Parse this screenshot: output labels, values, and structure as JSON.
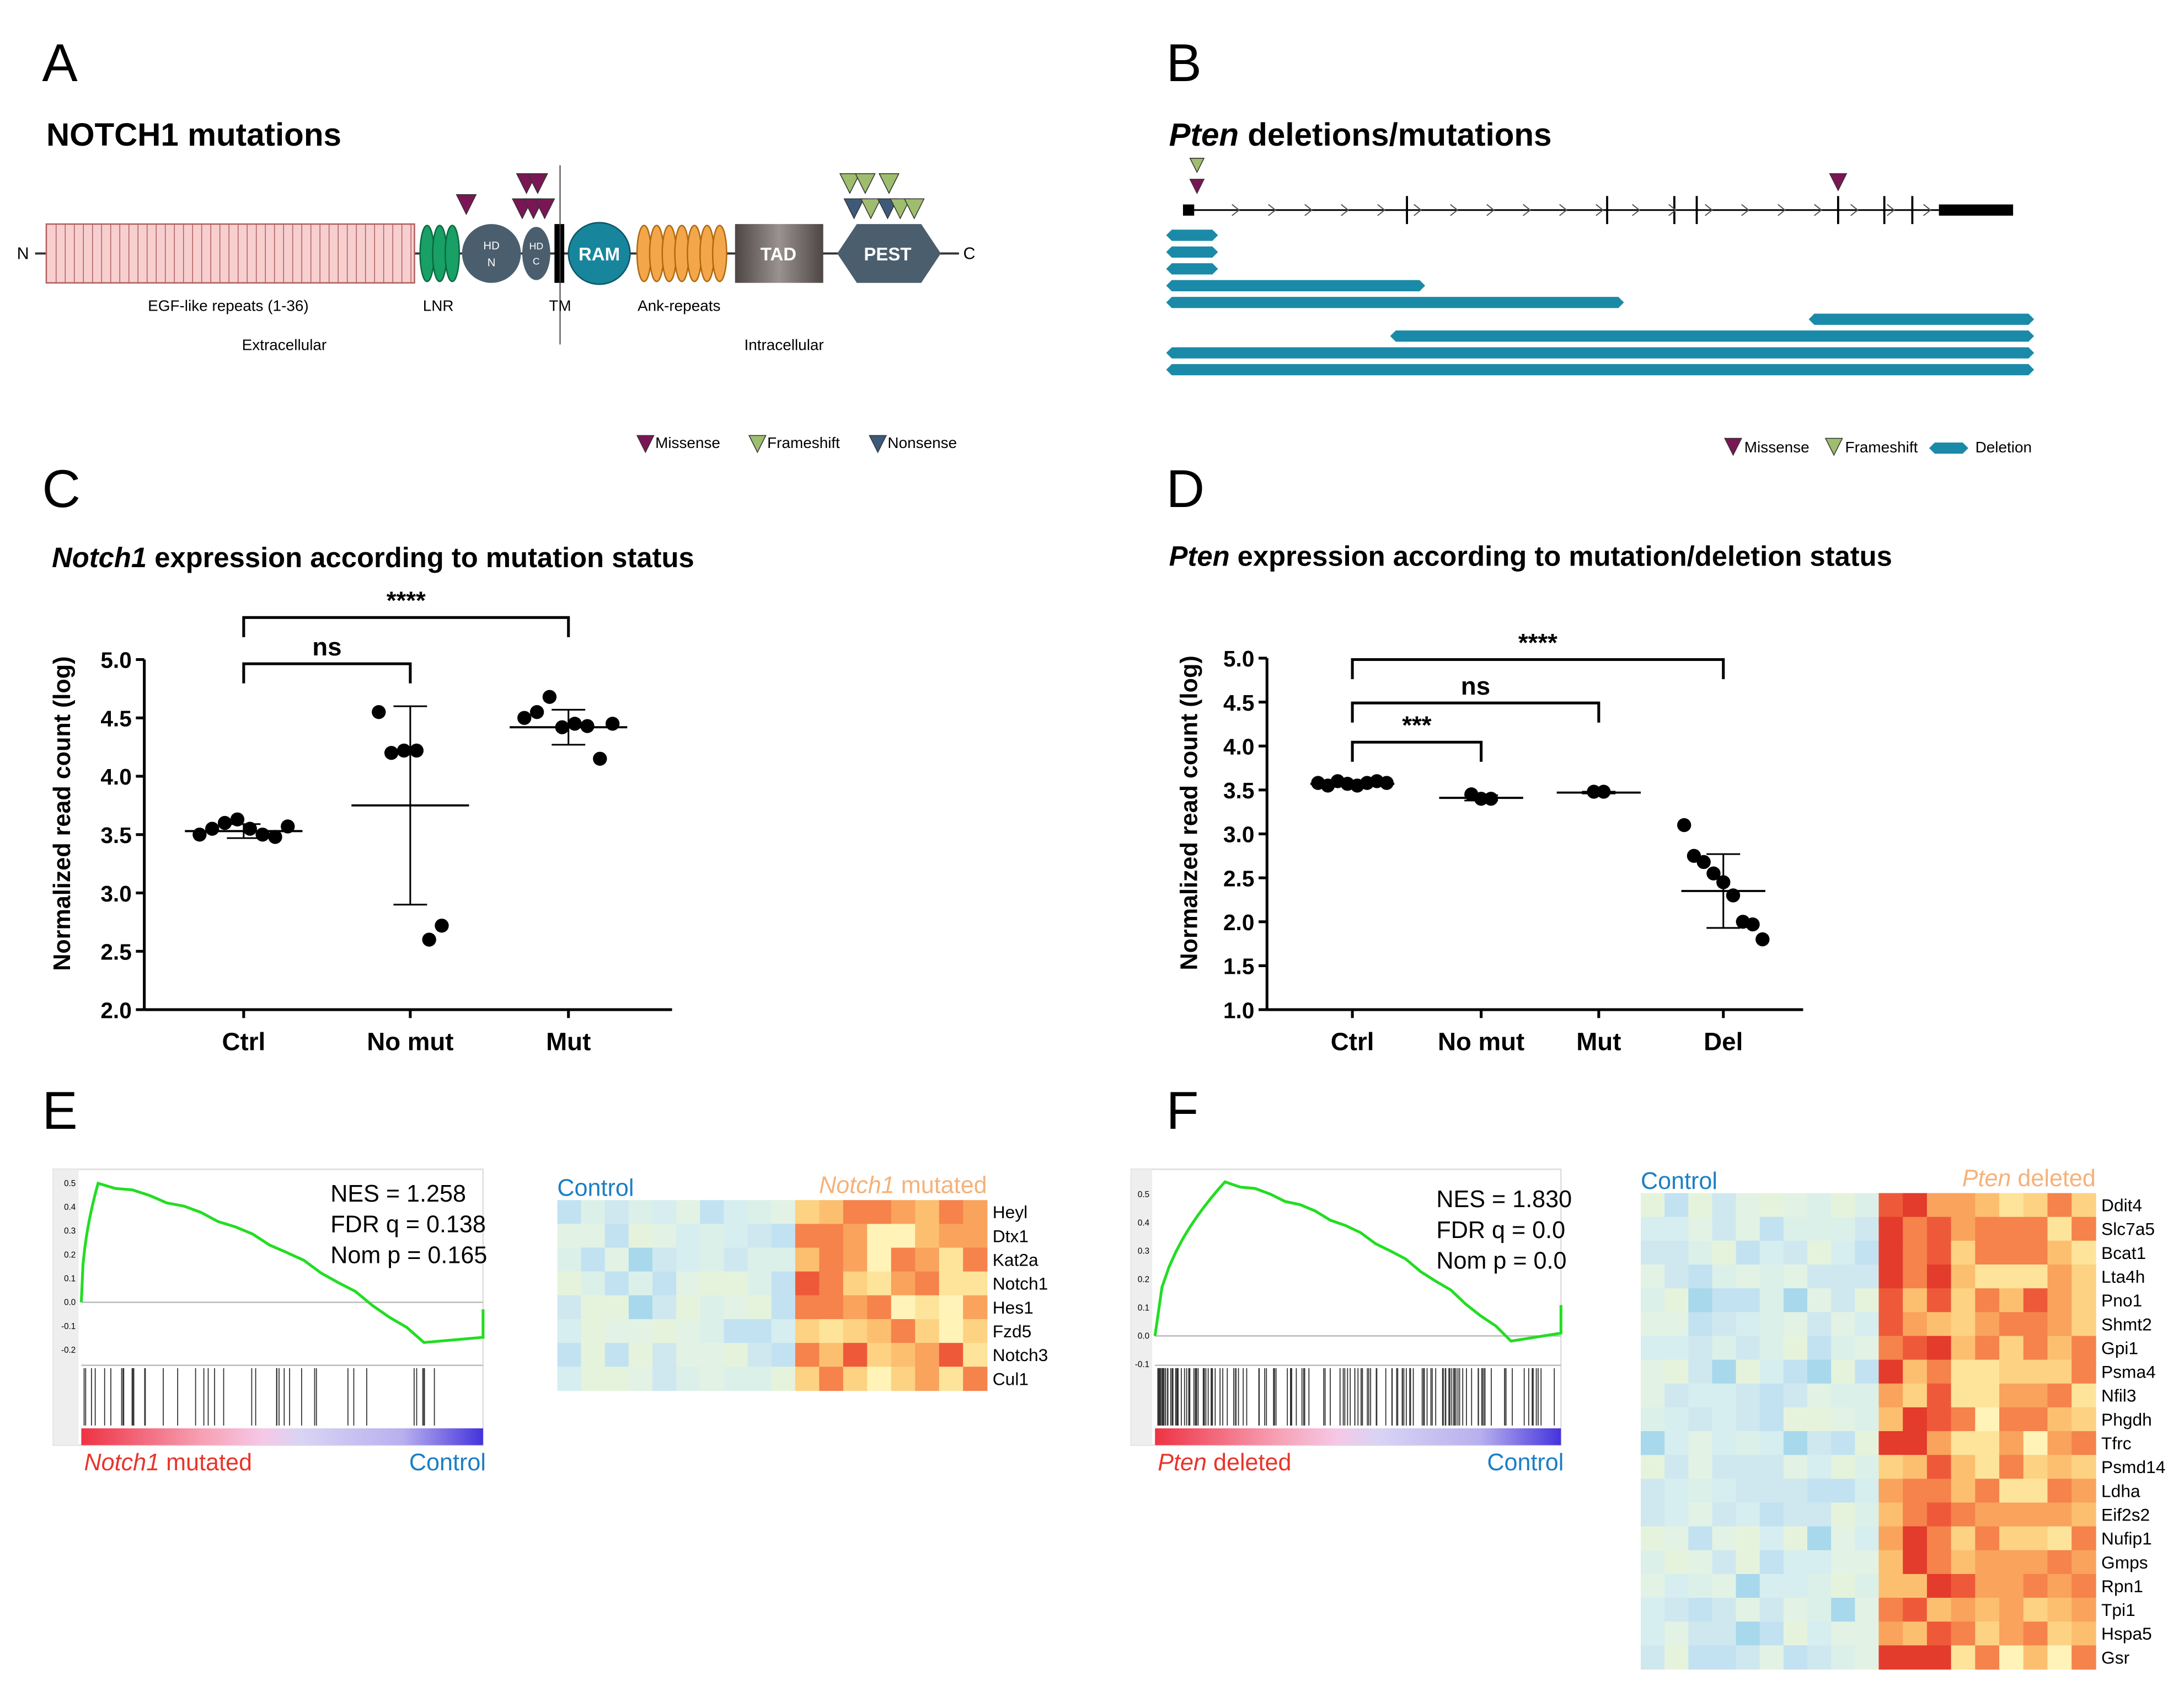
{
  "panel_labels": [
    "A",
    "B",
    "C",
    "D",
    "E",
    "F"
  ],
  "panel_a": {
    "title": "NOTCH1 mutations",
    "n_term": "N",
    "c_term": "C",
    "domains": [
      "EGF-like repeats (1-36)",
      "LNR",
      "TM",
      "Ank-repeats"
    ],
    "hd_n": [
      "HD",
      "N"
    ],
    "hd_c": [
      "HD",
      "C"
    ],
    "ram": "RAM",
    "tad": "TAD",
    "pest": "PEST",
    "regions": [
      "Extracellular",
      "Intracellular"
    ],
    "legend": [
      "Missense",
      "Frameshift",
      "Nonsense"
    ]
  },
  "panel_b": {
    "title": [
      "Pten",
      " deletions/mutations"
    ],
    "legend": [
      "Missense",
      "Frameshift",
      "Deletion"
    ]
  },
  "chart_data": [
    {
      "type": "dot",
      "title": [
        "Notch1",
        " expression according to mutation status"
      ],
      "ylabel": "Normalized read count (log)",
      "categories": [
        "Ctrl",
        "No mut",
        "Mut"
      ],
      "values": [
        [
          3.5,
          3.55,
          3.6,
          3.63,
          3.55,
          3.5,
          3.48,
          3.57
        ],
        [
          4.55,
          4.2,
          4.22,
          4.22,
          2.6,
          2.72
        ],
        [
          4.5,
          4.55,
          4.68,
          4.42,
          4.45,
          4.43,
          4.15,
          4.45
        ]
      ],
      "means": [
        3.53,
        3.75,
        4.42
      ],
      "sd": [
        0.06,
        0.85,
        0.15
      ],
      "ylim": [
        2.0,
        5.0
      ],
      "yticks": [
        {
          "value": 2.0,
          "label": "2.0"
        },
        {
          "value": 2.5,
          "label": "2.5"
        },
        {
          "value": 3.0,
          "label": "3.0"
        },
        {
          "value": 3.5,
          "label": "3.5"
        },
        {
          "value": 4.0,
          "label": "4.0"
        },
        {
          "value": 4.5,
          "label": "4.5"
        },
        {
          "value": 5.0,
          "label": "5.0"
        }
      ],
      "comparisons": [
        {
          "between": [
            0,
            1
          ],
          "label": "ns"
        },
        {
          "between": [
            0,
            2
          ],
          "label": "****"
        }
      ],
      "color": "#000000"
    },
    {
      "type": "dot",
      "title": [
        "Pten",
        " expression according to mutation/deletion status"
      ],
      "ylabel": "Normalized read count (log)",
      "categories": [
        "Ctrl",
        "No mut",
        "Mut",
        "Del"
      ],
      "values": [
        [
          3.58,
          3.55,
          3.6,
          3.57,
          3.55,
          3.58,
          3.6,
          3.58
        ],
        [
          3.45,
          3.4,
          3.4
        ],
        [
          3.48,
          3.48
        ],
        [
          3.1,
          2.75,
          2.68,
          2.55,
          2.45,
          2.3,
          2.0,
          1.97,
          1.8
        ]
      ],
      "means": [
        3.57,
        3.41,
        3.47,
        2.35
      ],
      "sd": [
        0.03,
        0.03,
        0.01,
        0.42
      ],
      "ylim": [
        1.0,
        5.0
      ],
      "yticks": [
        {
          "value": 1.0,
          "label": "1.0"
        },
        {
          "value": 1.5,
          "label": "1.5"
        },
        {
          "value": 2.0,
          "label": "2.0"
        },
        {
          "value": 2.5,
          "label": "2.5"
        },
        {
          "value": 3.0,
          "label": "3.0"
        },
        {
          "value": 3.5,
          "label": "3.5"
        },
        {
          "value": 4.0,
          "label": "4.0"
        },
        {
          "value": 4.5,
          "label": "4.5"
        },
        {
          "value": 5.0,
          "label": "5.0"
        }
      ],
      "comparisons": [
        {
          "between": [
            0,
            1
          ],
          "label": "***"
        },
        {
          "between": [
            0,
            2
          ],
          "label": "ns"
        },
        {
          "between": [
            0,
            3
          ],
          "label": "****"
        }
      ],
      "color": "#000000"
    }
  ],
  "panel_e": {
    "stats": [
      "NES = 1.258",
      "FDR q = 0.138",
      "Nom p = 0.165"
    ],
    "yticks": [
      "0.5",
      "0.4",
      "0.3",
      "0.2",
      "0.1",
      "0.0",
      "-0.1",
      "-0.2"
    ],
    "left_label": [
      "Notch1",
      " mutated"
    ],
    "right_label": "Control",
    "heatmap_left": "Control",
    "heatmap_right": [
      "Notch1",
      " mutated"
    ],
    "genes": [
      "Heyl",
      "Dtx1",
      "Kat2a",
      "Notch1",
      "Hes1",
      "Fzd5",
      "Notch3",
      "Cul1"
    ]
  },
  "panel_f": {
    "stats": [
      "NES = 1.830",
      "FDR q = 0.0",
      "Nom p = 0.0"
    ],
    "yticks": [
      "0.5",
      "0.4",
      "0.3",
      "0.2",
      "0.1",
      "0.0",
      "-0.1"
    ],
    "left_label": [
      "Pten",
      " deleted"
    ],
    "right_label": "Control",
    "heatmap_left": "Control",
    "heatmap_right": [
      "Pten",
      " deleted"
    ],
    "genes": [
      "Ddit4",
      "Slc7a5",
      "Bcat1",
      "Lta4h",
      "Pno1",
      "Shmt2",
      "Gpi1",
      "Psma4",
      "Nfil3",
      "Phgdh",
      "Tfrc",
      "Psmd14",
      "Ldha",
      "Eif2s2",
      "Nufip1",
      "Gmps",
      "Rpn1",
      "Tpi1",
      "Hspa5",
      "Gsr"
    ]
  }
}
